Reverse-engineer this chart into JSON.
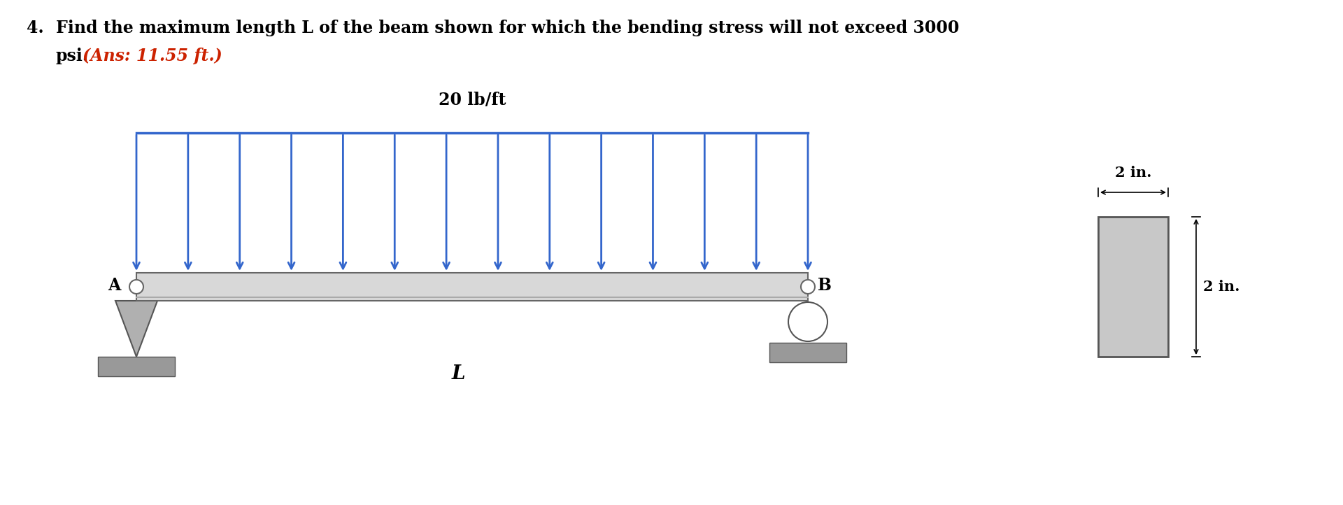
{
  "title_line1": "Find the maximum length L of the beam shown for which the bending stress will not exceed 3000",
  "title_line2": "psi.",
  "ans_text": "(Ans: 11.55 ft.)",
  "question_number": "4.",
  "load_label": "20 lb/ft",
  "label_A": "A",
  "label_B": "B",
  "label_L": "L",
  "dim_top": "2 in.",
  "dim_right": "2 in.",
  "beam_color": "#d8d8d8",
  "beam_edge_color": "#666666",
  "blue_color": "#3366cc",
  "support_color": "#b0b0b0",
  "ground_color": "#999999",
  "text_color": "#000000",
  "ans_color": "#cc2200",
  "bg_color": "#ffffff"
}
